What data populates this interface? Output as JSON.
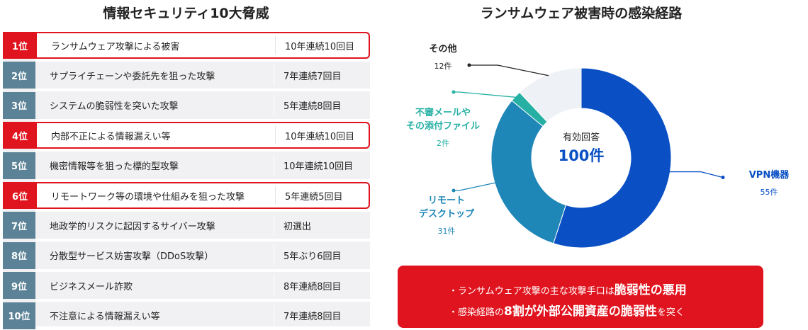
{
  "left_title": "情報セキュリティ10大脅威",
  "right_title": "ランサムウェア被害時の感染経路",
  "threats": [
    {
      "rank": "1位",
      "name": "ランサムウェア攻撃による被害",
      "streak": "10年連続10回目",
      "highlight": true
    },
    {
      "rank": "2位",
      "name": "サプライチェーンや委託先を狙った攻撃",
      "streak": "7年連続7回目",
      "highlight": false
    },
    {
      "rank": "3位",
      "name": "システムの脆弱性を突いた攻撃",
      "streak": "5年連続8回目",
      "highlight": false
    },
    {
      "rank": "4位",
      "name": "内部不正による情報漏えい等",
      "streak": "10年連続10回目",
      "highlight": true
    },
    {
      "rank": "5位",
      "name": "機密情報等を狙った標的型攻撃",
      "streak": "10年連続10回目",
      "highlight": false
    },
    {
      "rank": "6位",
      "name": "リモートワーク等の環境や仕組みを狙った攻撃",
      "streak": "5年連続5回目",
      "highlight": true
    },
    {
      "rank": "7位",
      "name": "地政学的リスクに起因するサイバー攻撃",
      "streak": "初選出",
      "highlight": false
    },
    {
      "rank": "8位",
      "name": "分散型サービス妨害攻撃（DDoS攻撃）",
      "streak": "5年ぶり6回目",
      "highlight": false
    },
    {
      "rank": "9位",
      "name": "ビジネスメール詐欺",
      "streak": "8年連続8回目",
      "highlight": false
    },
    {
      "rank": "10位",
      "name": "不注意による情報漏えい等",
      "streak": "7年連続8回目",
      "highlight": false
    }
  ],
  "chart_data": {
    "type": "pie",
    "title": "ランサムウェア被害時の感染経路",
    "center_label": "有効回答",
    "center_value": "100件",
    "slices": [
      {
        "name": "VPN機器",
        "value": 55,
        "count_label": "55件",
        "color": "#0a50c4"
      },
      {
        "name": "リモートデスクトップ",
        "name_lines": [
          "リモート",
          "デスクトップ"
        ],
        "value": 31,
        "count_label": "31件",
        "color": "#1f87b8"
      },
      {
        "name": "不審メールやその添付ファイル",
        "name_lines": [
          "不審メールや",
          "その添付ファイル"
        ],
        "value": 2,
        "count_label": "2件",
        "color": "#26b0a4"
      },
      {
        "name": "その他",
        "value": 12,
        "count_label": "12件",
        "color": "#eef1f5"
      }
    ]
  },
  "callout": {
    "line1_prefix": "・ランサムウェア攻撃の主な攻撃手口は",
    "line1_emph": "脆弱性の悪用",
    "line2_prefix": "・感染経路の",
    "line2_emph": "8割が外部公開資産の脆弱性",
    "line2_suffix": "を突く"
  },
  "colors": {
    "accent_red": "#e0141e",
    "rank_bg": "#5b8296",
    "vpn_label": "#0a50c4",
    "teal_label": "#26b0a4",
    "remote_label": "#1f87b8"
  }
}
